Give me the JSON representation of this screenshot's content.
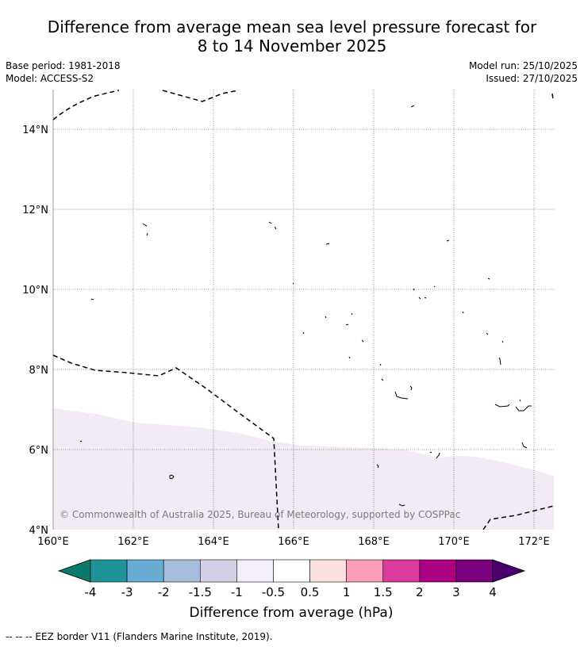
{
  "header": {
    "title_line1": "Difference from average mean sea level pressure forecast for",
    "title_line2": "8 to 14 November 2025",
    "base_period": "Base period: 1981-2018",
    "model": "Model: ACCESS-S2",
    "model_run": "Model run: 25/10/2025",
    "issued": "Issued: 27/10/2025"
  },
  "map": {
    "lon_ticks": [
      "160°E",
      "162°E",
      "164°E",
      "166°E",
      "168°E",
      "170°E",
      "172°E"
    ],
    "lat_ticks": [
      "14°N",
      "12°N",
      "10°N",
      "8°N",
      "6°N",
      "4°N"
    ],
    "copyright": "© Commonwealth of Australia 2025, Bureau of Meteorology, supported by COSPPac",
    "colors": {
      "shading": "#f2eaf4",
      "border": "#000000",
      "grid": "#777777"
    }
  },
  "colorbar": {
    "labels": [
      "-4",
      "-3",
      "-2",
      "-1.5",
      "-1",
      "-0.5",
      "0.5",
      "1",
      "1.5",
      "2",
      "3",
      "4"
    ],
    "colors": [
      "#0a7a6a",
      "#1e9498",
      "#67acd3",
      "#a6bcdc",
      "#d2d0e6",
      "#f4eef8",
      "#ffffff",
      "#fddfe0",
      "#f99db9",
      "#dd3a9d",
      "#ac0082",
      "#7b007b",
      "#4b006e"
    ],
    "label": "Difference from average (hPa)"
  },
  "footer": {
    "legend": "--  --  -- EEZ border V11 (Flanders Marine Institute, 2019)."
  }
}
